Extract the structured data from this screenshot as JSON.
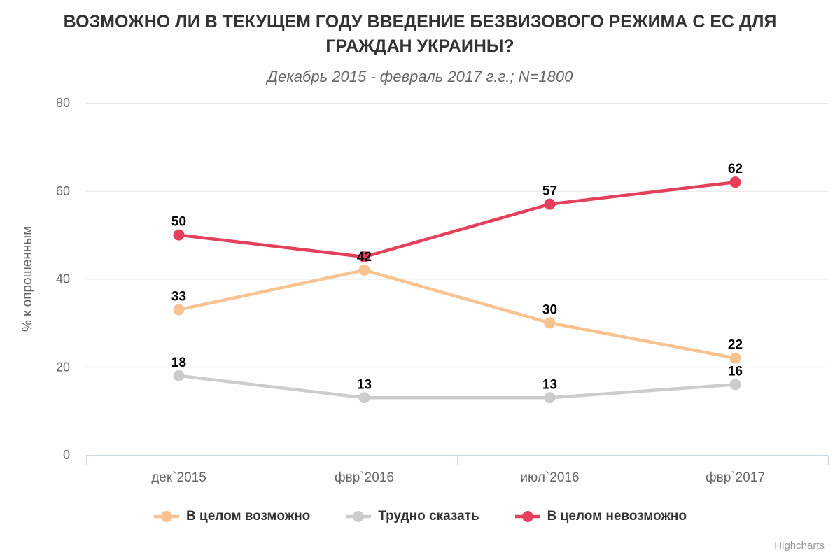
{
  "credit": "Highcharts",
  "colors": {
    "background": "#ffffff",
    "title": "#333333",
    "subtitle": "#666666",
    "grid": "#e6e6e6",
    "axis_line": "#ccd6eb",
    "tick_label": "#666666",
    "data_label": "#000000",
    "legend_text": "#333333",
    "credit": "#999999"
  },
  "chart_data": {
    "type": "line",
    "title": "ВОЗМОЖНО ЛИ В ТЕКУЩЕМ ГОДУ ВВЕДЕНИЕ БЕЗВИЗОВОГО РЕЖИМА С ЕС ДЛЯ ГРАЖДАН УКРАИНЫ?",
    "subtitle": "Декабрь 2015 - февраль 2017 г.г.; N=1800",
    "categories": [
      "дек`2015",
      "фвр`2016",
      "июл`2016",
      "фвр`2017"
    ],
    "xlabel": "",
    "ylabel": "% к опрошенным",
    "ylim": [
      0,
      80
    ],
    "yticks": [
      0,
      20,
      40,
      60,
      80
    ],
    "grid": true,
    "legend_position": "bottom",
    "series": [
      {
        "name": "В целом возможно",
        "color": "#f8c291",
        "values": [
          33,
          42,
          30,
          22
        ],
        "labels": [
          "33",
          "42",
          "30",
          "22"
        ]
      },
      {
        "name": "Трудно сказать",
        "color": "#cccccc",
        "values": [
          18,
          13,
          13,
          16
        ],
        "labels": [
          "18",
          "13",
          "13",
          "16"
        ]
      },
      {
        "name": "В целом невозможно",
        "color": "#e4405c",
        "values": [
          50,
          45,
          57,
          62
        ],
        "labels": [
          "50",
          "",
          "57",
          "62"
        ]
      }
    ]
  }
}
